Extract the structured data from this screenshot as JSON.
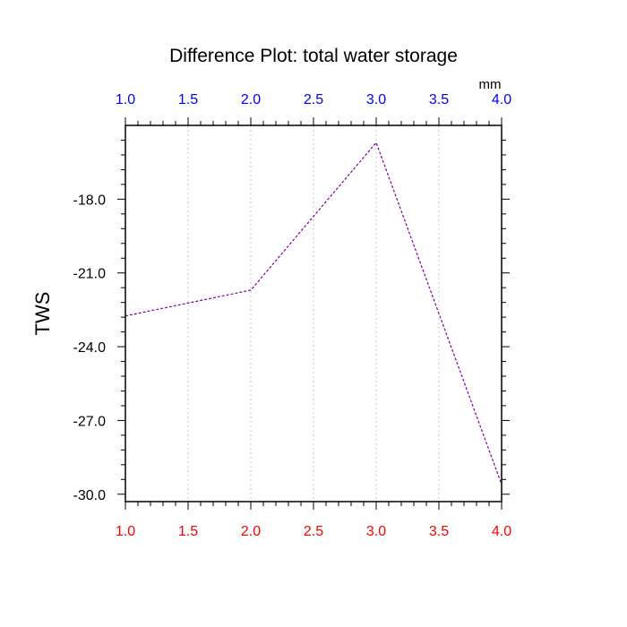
{
  "chart_data": {
    "type": "line",
    "title": "Difference Plot: total water storage",
    "ylabel": "TWS",
    "top_axis_unit": "mm",
    "xlim": [
      1.0,
      4.0
    ],
    "ylim": [
      -30.3,
      -15.0
    ],
    "x_ticks": [
      "1.0",
      "1.5",
      "2.0",
      "2.5",
      "3.0",
      "3.5",
      "4.0"
    ],
    "y_ticks": [
      "-18.0",
      "-21.0",
      "-24.0",
      "-27.0",
      "-30.0"
    ],
    "x_tick_values": [
      1.0,
      1.5,
      2.0,
      2.5,
      3.0,
      3.5,
      4.0
    ],
    "y_tick_values": [
      -18.0,
      -21.0,
      -24.0,
      -27.0,
      -30.0
    ],
    "grid": "vertical dotted",
    "series": [
      {
        "x": [
          1.0,
          2.0,
          3.0,
          4.0
        ],
        "y": [
          -22.75,
          -21.7,
          -15.7,
          -29.6
        ],
        "color": "#8000a0",
        "style": "dashed"
      }
    ],
    "colors": {
      "bottom_tick_labels": "#ff0000",
      "top_tick_labels": "#0000ff",
      "left_tick_labels": "#000000"
    }
  }
}
